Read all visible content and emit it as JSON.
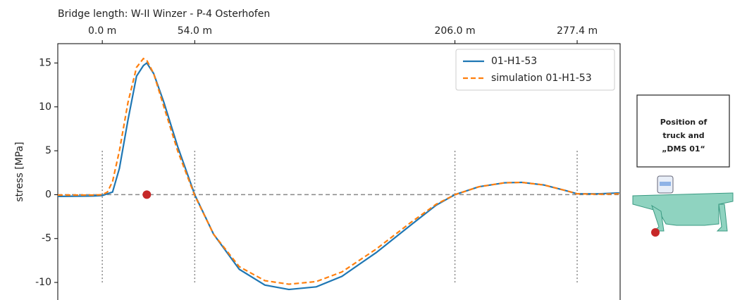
{
  "chart_data": {
    "type": "line",
    "title": "Bridge length: W-II Winzer - P-4 Osterhofen",
    "y_label": "stress [MPa]",
    "x": [
      -26,
      -5,
      0,
      3,
      6,
      10,
      15,
      20,
      24,
      26,
      30,
      36,
      44,
      54,
      65,
      80,
      95,
      109,
      125,
      140,
      160,
      180,
      195,
      206,
      220,
      235,
      245,
      258,
      270,
      277.4,
      290,
      302
    ],
    "series": [
      {
        "name": "01-H1-53",
        "color": "#1f77b4",
        "dash": false,
        "values": [
          -0.2,
          -0.15,
          -0.1,
          0.1,
          0.3,
          3,
          8.5,
          13.5,
          14.7,
          15,
          13.8,
          10.5,
          5.5,
          0,
          -4.5,
          -8.5,
          -10.3,
          -10.8,
          -10.5,
          -9.3,
          -6.6,
          -3.5,
          -1.2,
          0,
          0.9,
          1.35,
          1.4,
          1.1,
          0.5,
          0.1,
          0.1,
          0.2
        ]
      },
      {
        "name": "simulation 01-H1-53",
        "color": "#ff7f0e",
        "dash": true,
        "values": [
          -0.05,
          -0.05,
          0,
          0.3,
          1.5,
          5,
          10.5,
          14.5,
          15.5,
          15.3,
          13.8,
          10,
          5,
          -0.1,
          -4.5,
          -8.2,
          -9.8,
          -10.2,
          -9.9,
          -8.8,
          -6.2,
          -3.2,
          -1.1,
          0,
          0.9,
          1.35,
          1.4,
          1.1,
          0.5,
          0.1,
          0.05,
          0.1
        ]
      }
    ],
    "xlim": [
      -26,
      302.5
    ],
    "xticks": [
      {
        "value": 0,
        "label": "0.0 m"
      },
      {
        "value": 54,
        "label": "54.0 m"
      },
      {
        "value": 206,
        "label": "206.0 m"
      },
      {
        "value": 277.4,
        "label": "277.4 m"
      }
    ],
    "ylim": [
      -12,
      17.2
    ],
    "yticks": [
      -10,
      -5,
      0,
      5,
      10,
      15
    ],
    "marker": {
      "x": 26,
      "y": 0,
      "color": "#c62828"
    },
    "legend": "upper right",
    "side_note": [
      "Position of",
      "truck and",
      "„DMS 01“"
    ]
  }
}
